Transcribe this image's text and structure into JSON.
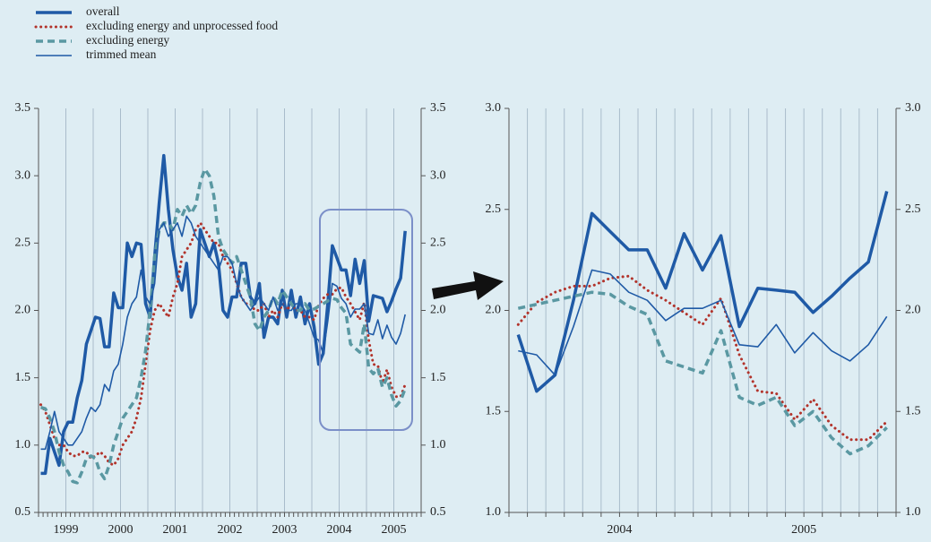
{
  "chart_data": [
    {
      "type": "line",
      "categories": [
        null,
        null,
        null,
        null,
        null,
        null,
        "1999",
        null,
        null,
        null,
        null,
        null,
        null,
        null,
        null,
        null,
        null,
        null,
        "2000",
        null,
        null,
        null,
        null,
        null,
        null,
        null,
        null,
        null,
        null,
        null,
        "2001",
        null,
        null,
        null,
        null,
        null,
        null,
        null,
        null,
        null,
        null,
        null,
        "2002",
        null,
        null,
        null,
        null,
        null,
        null,
        null,
        null,
        null,
        null,
        null,
        "2003",
        null,
        null,
        null,
        null,
        null,
        null,
        null,
        null,
        null,
        null,
        null,
        "2004",
        null,
        null,
        null,
        null,
        null,
        null,
        null,
        null,
        null,
        null,
        null,
        "2005",
        null,
        null
      ],
      "ylim": [
        0.5,
        3.5
      ],
      "yticks": [
        0.5,
        {
          "value": 1,
          "label": "1.0"
        },
        1.5,
        {
          "value": 2,
          "label": "2.0"
        },
        2.5,
        {
          "value": 3,
          "label": "3.0"
        },
        3.5
      ],
      "series": [
        {
          "name": "overall",
          "color": "#1f5aa6",
          "style": "thick",
          "values": [
            0.79,
            0.79,
            1.05,
            0.95,
            0.85,
            1.1,
            1.17,
            1.17,
            1.35,
            1.48,
            1.75,
            1.85,
            1.95,
            1.94,
            1.73,
            1.73,
            2.13,
            2.02,
            2.02,
            2.5,
            2.4,
            2.5,
            2.49,
            2.05,
            1.95,
            2.4,
            2.8,
            3.15,
            2.75,
            2.45,
            2.25,
            2.15,
            2.35,
            1.95,
            2.05,
            2.6,
            2.5,
            2.4,
            2.5,
            2.35,
            2.0,
            1.95,
            2.1,
            2.1,
            2.35,
            2.35,
            2.1,
            2.05,
            2.2,
            1.8,
            1.95,
            1.95,
            1.9,
            2.15,
            1.95,
            2.15,
            1.95,
            2.1,
            1.9,
            2.05,
            1.88,
            1.6,
            1.68,
            2.05,
            2.48,
            2.39,
            2.3,
            2.3,
            2.11,
            2.38,
            2.2,
            2.37,
            1.92,
            2.11,
            2.1,
            2.09,
            1.99,
            2.07,
            2.16,
            2.24,
            2.59
          ]
        },
        {
          "name": "excluding energy and unprocessed food",
          "color": "#b2332b",
          "style": "dotted",
          "values": [
            1.3,
            1.25,
            1.15,
            1.05,
            1.0,
            1.0,
            0.95,
            0.92,
            0.92,
            0.95,
            0.95,
            0.9,
            0.92,
            0.95,
            0.92,
            0.87,
            0.85,
            0.9,
            1.0,
            1.05,
            1.1,
            1.2,
            1.35,
            1.6,
            1.85,
            2.0,
            2.05,
            2.0,
            1.95,
            2.1,
            2.2,
            2.4,
            2.45,
            2.5,
            2.6,
            2.65,
            2.6,
            2.55,
            2.5,
            2.5,
            2.4,
            2.35,
            2.3,
            2.2,
            2.1,
            2.05,
            2.05,
            2.0,
            2.0,
            2.05,
            1.95,
            2.0,
            1.95,
            2.05,
            2.0,
            2.05,
            2.0,
            2.0,
            1.95,
            1.95,
            1.93,
            2.04,
            2.09,
            2.12,
            2.12,
            2.16,
            2.17,
            2.1,
            2.05,
            1.99,
            1.93,
            2.06,
            1.78,
            1.6,
            1.59,
            1.46,
            1.56,
            1.43,
            1.36,
            1.36,
            1.45
          ]
        },
        {
          "name": "excluding energy",
          "color": "#5a98a2",
          "style": "dashed",
          "values": [
            1.28,
            1.27,
            1.2,
            1.1,
            0.95,
            0.85,
            0.8,
            0.73,
            0.72,
            0.8,
            0.9,
            0.92,
            0.9,
            0.8,
            0.75,
            0.85,
            1.0,
            1.1,
            1.2,
            1.25,
            1.3,
            1.35,
            1.5,
            1.7,
            2.0,
            2.4,
            2.6,
            2.65,
            2.65,
            2.6,
            2.75,
            2.7,
            2.78,
            2.72,
            2.78,
            2.95,
            3.05,
            3.0,
            2.85,
            2.55,
            2.45,
            2.4,
            2.35,
            2.4,
            2.3,
            2.2,
            2.1,
            1.9,
            1.85,
            1.95,
            2.0,
            2.1,
            2.05,
            2.15,
            2.1,
            2.05,
            2.0,
            2.0,
            2.05,
            2.0,
            2.01,
            2.03,
            2.05,
            2.07,
            2.09,
            2.08,
            2.02,
            1.98,
            1.75,
            1.72,
            1.69,
            1.9,
            1.57,
            1.53,
            1.57,
            1.43,
            1.5,
            1.37,
            1.29,
            1.33,
            1.42
          ]
        },
        {
          "name": "trimmed mean",
          "color": "#1f5aa6",
          "style": "thin",
          "values": [
            0.97,
            0.97,
            1.1,
            1.25,
            1.1,
            1.05,
            1.0,
            1.0,
            1.05,
            1.1,
            1.2,
            1.28,
            1.25,
            1.3,
            1.45,
            1.4,
            1.55,
            1.6,
            1.75,
            1.95,
            2.05,
            2.1,
            2.3,
            2.1,
            2.05,
            2.2,
            2.6,
            2.65,
            2.55,
            2.6,
            2.65,
            2.55,
            2.7,
            2.65,
            2.55,
            2.5,
            2.45,
            2.4,
            2.35,
            2.3,
            2.4,
            2.4,
            2.35,
            2.2,
            2.1,
            2.05,
            2.0,
            2.05,
            2.1,
            2.05,
            2.0,
            2.1,
            2.0,
            2.05,
            2.0,
            2.0,
            2.05,
            2.05,
            2.0,
            1.9,
            1.8,
            1.78,
            1.68,
            1.92,
            2.2,
            2.18,
            2.09,
            2.05,
            1.95,
            2.01,
            2.01,
            2.05,
            1.83,
            1.82,
            1.93,
            1.79,
            1.89,
            1.8,
            1.75,
            1.83,
            1.97
          ]
        }
      ]
    },
    {
      "type": "line",
      "categories": [
        null,
        null,
        null,
        null,
        null,
        null,
        "2004",
        null,
        null,
        null,
        null,
        null,
        null,
        null,
        null,
        null,
        "2005",
        null,
        null,
        null,
        null
      ],
      "ylim": [
        1,
        3
      ],
      "yticks": [
        {
          "value": 1,
          "label": "1.0"
        },
        1.5,
        {
          "value": 2,
          "label": "2.0"
        },
        2.5,
        {
          "value": 3,
          "label": "3.0"
        }
      ],
      "series": [
        {
          "color": "#1f5aa6",
          "style": "thick",
          "values": [
            1.88,
            1.6,
            1.68,
            2.05,
            2.48,
            2.39,
            2.3,
            2.3,
            2.11,
            2.38,
            2.2,
            2.37,
            1.92,
            2.11,
            2.1,
            2.09,
            1.99,
            2.07,
            2.16,
            2.24,
            2.59
          ]
        },
        {
          "color": "#b2332b",
          "style": "dotted",
          "values": [
            1.93,
            2.04,
            2.09,
            2.12,
            2.12,
            2.16,
            2.17,
            2.1,
            2.05,
            1.99,
            1.93,
            2.06,
            1.78,
            1.6,
            1.59,
            1.46,
            1.56,
            1.43,
            1.36,
            1.36,
            1.45
          ]
        },
        {
          "color": "#5a98a2",
          "style": "dashed",
          "values": [
            2.01,
            2.03,
            2.05,
            2.07,
            2.09,
            2.08,
            2.02,
            1.98,
            1.75,
            1.72,
            1.69,
            1.9,
            1.57,
            1.53,
            1.57,
            1.43,
            1.5,
            1.37,
            1.29,
            1.33,
            1.42
          ]
        },
        {
          "color": "#1f5aa6",
          "style": "thin",
          "values": [
            1.8,
            1.78,
            1.68,
            1.92,
            2.2,
            2.18,
            2.09,
            2.05,
            1.95,
            2.01,
            2.01,
            2.05,
            1.83,
            1.82,
            1.93,
            1.79,
            1.89,
            1.8,
            1.75,
            1.83,
            1.97
          ]
        }
      ]
    }
  ]
}
